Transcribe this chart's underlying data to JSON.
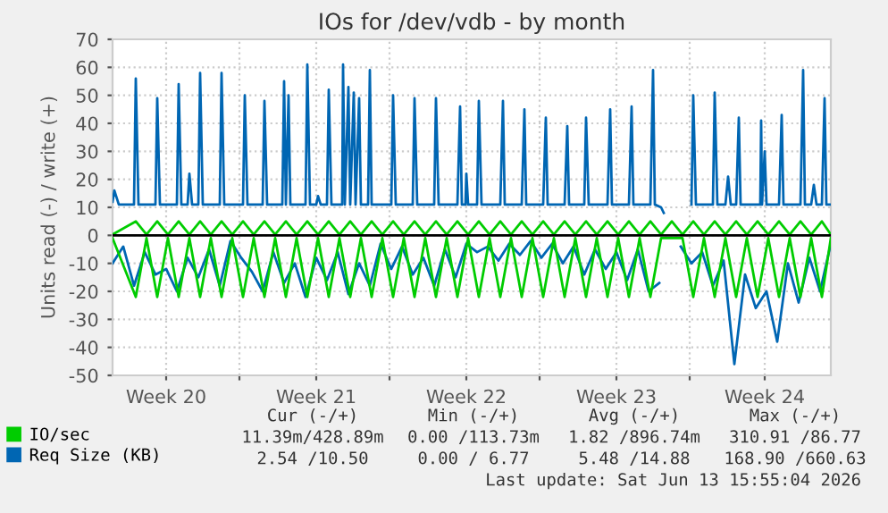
{
  "chart_data": {
    "type": "line",
    "title": "IOs for /dev/vdb - by month",
    "ylabel": "Units read (-) / write (+)",
    "xlim": [
      "2026-05-11T04:00",
      "2026-06-13T16:00"
    ],
    "ylim": [
      -50,
      70
    ],
    "xticks": [
      {
        "value": "2026-05-13T16:00",
        "label": "Week 20"
      },
      {
        "value": "2026-05-17T02:00",
        "label": null
      },
      {
        "value": "2026-05-20T16:00",
        "label": "Week 21"
      },
      {
        "value": "2026-05-24T02:00",
        "label": null
      },
      {
        "value": "2026-05-27T16:00",
        "label": "Week 22"
      },
      {
        "value": "2026-05-31T02:00",
        "label": null
      },
      {
        "value": "2026-06-03T16:00",
        "label": "Week 23"
      },
      {
        "value": "2026-06-07T02:00",
        "label": null
      },
      {
        "value": "2026-06-10T14:00",
        "label": "Week 24"
      }
    ],
    "yticks": [
      -50,
      -40,
      -30,
      -20,
      -10,
      0,
      10,
      20,
      30,
      40,
      50,
      60,
      70
    ],
    "grid": true,
    "legend": "bottom",
    "marker": "none",
    "line_style": "solid",
    "ref_lines": [
      {
        "axis": "y",
        "value": 0,
        "color": "#000000"
      }
    ],
    "series": [
      {
        "name": "Req Size (KB)",
        "color": "#0066b3",
        "x": [
          "2026-05-11T04:00",
          "2026-05-11T06:00",
          "2026-05-11T11:00",
          "2026-05-12T04:00",
          "2026-05-12T06:00",
          "2026-05-12T09:00",
          "2026-05-13T04:00",
          "2026-05-13T06:00",
          "2026-05-13T09:00",
          "2026-05-14T04:00",
          "2026-05-14T06:00",
          "2026-05-14T09:00",
          "2026-05-14T16:00",
          "2026-05-14T18:00",
          "2026-05-14T21:00",
          "2026-05-15T04:00",
          "2026-05-15T06:00",
          "2026-05-15T09:00",
          "2026-05-16T04:00",
          "2026-05-16T06:00",
          "2026-05-16T09:00",
          "2026-05-17T06:00",
          "2026-05-17T08:00",
          "2026-05-17T11:00",
          "2026-05-18T04:00",
          "2026-05-18T06:00",
          "2026-05-18T09:00",
          "2026-05-19T02:00",
          "2026-05-19T04:00",
          "2026-05-19T06:00",
          "2026-05-19T09:00",
          "2026-05-19T11:00",
          "2026-05-20T04:00",
          "2026-05-20T06:00",
          "2026-05-20T09:00",
          "2026-05-20T16:00",
          "2026-05-20T18:00",
          "2026-05-20T21:00",
          "2026-05-21T04:00",
          "2026-05-21T06:00",
          "2026-05-21T09:00",
          "2026-05-21T21:00",
          "2026-05-21T22:00",
          "2026-05-22T00:00",
          "2026-05-22T04:00",
          "2026-05-22T06:00",
          "2026-05-22T10:00",
          "2026-05-22T12:00",
          "2026-05-22T16:00",
          "2026-05-22T18:00",
          "2026-05-23T02:00",
          "2026-05-23T04:00",
          "2026-05-23T06:00",
          "2026-05-24T04:00",
          "2026-05-24T06:00",
          "2026-05-24T09:00",
          "2026-05-25T04:00",
          "2026-05-25T06:00",
          "2026-05-25T09:00",
          "2026-05-26T04:00",
          "2026-05-26T06:00",
          "2026-05-26T09:00",
          "2026-05-27T06:00",
          "2026-05-27T09:00",
          "2026-05-27T11:00",
          "2026-05-27T15:00",
          "2026-05-27T16:00",
          "2026-05-27T18:00",
          "2026-05-28T04:00",
          "2026-05-28T06:00",
          "2026-05-28T09:00",
          "2026-05-29T06:00",
          "2026-05-29T09:00",
          "2026-05-29T11:00",
          "2026-05-30T06:00",
          "2026-05-30T09:00",
          "2026-05-30T11:00",
          "2026-05-31T06:00",
          "2026-05-31T09:00",
          "2026-05-31T11:00",
          "2026-06-01T06:00",
          "2026-06-01T09:00",
          "2026-06-01T11:00",
          "2026-06-02T04:00",
          "2026-06-02T06:00",
          "2026-06-02T09:00",
          "2026-06-03T06:00",
          "2026-06-03T09:00",
          "2026-06-03T11:00",
          "2026-06-04T06:00",
          "2026-06-04T09:00",
          "2026-06-04T11:00",
          "2026-06-05T06:00",
          "2026-06-05T09:00",
          "2026-06-05T11:00",
          "2026-06-05T18:00",
          "2026-06-05T21:00",
          "2026-06-07T02:00",
          "2026-06-07T04:00",
          "2026-06-07T06:00",
          "2026-06-07T09:00",
          "2026-06-08T04:00",
          "2026-06-08T06:00",
          "2026-06-08T09:00",
          "2026-06-08T18:00",
          "2026-06-08T21:00",
          "2026-06-09T00:00",
          "2026-06-09T06:00",
          "2026-06-09T09:00",
          "2026-06-09T11:00",
          "2026-06-10T09:00",
          "2026-06-10T10:00",
          "2026-06-10T11:00",
          "2026-06-10T14:00",
          "2026-06-10T16:00",
          "2026-06-11T06:00",
          "2026-06-11T09:00",
          "2026-06-11T11:00",
          "2026-06-12T06:00",
          "2026-06-12T09:00",
          "2026-06-12T11:00",
          "2026-06-12T18:00",
          "2026-06-12T21:00",
          "2026-06-13T00:00",
          "2026-06-13T06:00",
          "2026-06-13T09:00",
          "2026-06-13T11:00",
          "2026-06-13T16:00"
        ],
        "values": [
          12,
          16,
          11,
          11,
          56,
          11,
          11,
          49,
          11,
          11,
          54,
          11,
          11,
          22,
          11,
          11,
          58,
          11,
          11,
          58,
          11,
          11,
          50,
          11,
          11,
          48,
          11,
          11,
          55,
          11,
          50,
          11,
          11,
          61,
          11,
          11,
          14,
          11,
          11,
          52,
          11,
          11,
          61,
          11,
          53,
          11,
          51,
          11,
          49,
          11,
          11,
          59,
          11,
          11,
          50,
          11,
          11,
          49,
          11,
          11,
          49,
          11,
          11,
          46,
          11,
          11,
          22,
          11,
          11,
          48,
          11,
          11,
          48,
          11,
          11,
          45,
          11,
          11,
          42,
          11,
          11,
          39,
          11,
          11,
          42,
          11,
          11,
          45,
          11,
          11,
          46,
          11,
          11,
          59,
          11,
          10,
          8,
          null,
          11,
          50,
          11,
          11,
          51,
          11,
          11,
          21,
          11,
          11,
          42,
          11,
          11,
          41,
          11,
          30,
          11,
          11,
          43,
          11,
          11,
          59,
          11,
          11,
          18,
          11,
          11,
          49,
          11,
          11
        ]
      },
      {
        "color": "#0066b3",
        "x": [
          "2026-05-11T04:00",
          "2026-05-11T16:00",
          "2026-05-12T04:00",
          "2026-05-12T16:00",
          "2026-05-13T04:00",
          "2026-05-13T16:00",
          "2026-05-14T04:00",
          "2026-05-14T16:00",
          "2026-05-15T04:00",
          "2026-05-15T16:00",
          "2026-05-16T04:00",
          "2026-05-16T16:00",
          "2026-05-17T04:00",
          "2026-05-17T16:00",
          "2026-05-18T04:00",
          "2026-05-18T16:00",
          "2026-05-19T04:00",
          "2026-05-19T16:00",
          "2026-05-20T04:00",
          "2026-05-20T16:00",
          "2026-05-21T04:00",
          "2026-05-21T16:00",
          "2026-05-22T04:00",
          "2026-05-22T16:00",
          "2026-05-23T04:00",
          "2026-05-23T16:00",
          "2026-05-24T04:00",
          "2026-05-24T16:00",
          "2026-05-25T04:00",
          "2026-05-25T16:00",
          "2026-05-26T04:00",
          "2026-05-26T16:00",
          "2026-05-27T04:00",
          "2026-05-27T16:00",
          "2026-05-28T04:00",
          "2026-05-28T16:00",
          "2026-05-29T04:00",
          "2026-05-29T16:00",
          "2026-05-30T04:00",
          "2026-05-30T16:00",
          "2026-05-31T04:00",
          "2026-05-31T16:00",
          "2026-06-01T04:00",
          "2026-06-01T16:00",
          "2026-06-02T04:00",
          "2026-06-02T16:00",
          "2026-06-03T04:00",
          "2026-06-03T16:00",
          "2026-06-04T04:00",
          "2026-06-04T16:00",
          "2026-06-05T04:00",
          "2026-06-05T16:00",
          "2026-06-06T04:00",
          "2026-06-06T16:00",
          "2026-06-07T04:00",
          "2026-06-07T16:00",
          "2026-06-08T04:00",
          "2026-06-08T16:00",
          "2026-06-09T04:00",
          "2026-06-09T16:00",
          "2026-06-10T04:00",
          "2026-06-10T16:00",
          "2026-06-11T04:00",
          "2026-06-11T16:00",
          "2026-06-12T04:00",
          "2026-06-12T16:00",
          "2026-06-13T04:00",
          "2026-06-13T16:00"
        ],
        "values": [
          -10,
          -4,
          -18,
          -6,
          -14,
          -12,
          -20,
          -8,
          -15,
          -5,
          -18,
          -2,
          -8,
          -13,
          -20,
          -6,
          -17,
          -10,
          -22,
          -8,
          -16,
          -6,
          -21,
          -10,
          -18,
          -3,
          -12,
          -4,
          -14,
          -8,
          -18,
          -5,
          -15,
          -3,
          -6,
          -4,
          -9,
          -3,
          -7,
          -2,
          -8,
          -3,
          -10,
          -4,
          -14,
          -5,
          -12,
          -6,
          -16,
          -5,
          -20,
          -17,
          null,
          -4,
          -10,
          -6,
          -18,
          -9,
          -46,
          -14,
          -26,
          -20,
          -38,
          -10,
          -24,
          -8,
          -20,
          -3
        ]
      },
      {
        "name": "IO/sec",
        "color": "#00cc00",
        "x": [
          "2026-05-11T04:00",
          "2026-05-12T06:00",
          "2026-05-12T18:00",
          "2026-05-13T06:00",
          "2026-05-13T18:00",
          "2026-05-14T06:00",
          "2026-05-14T18:00",
          "2026-05-15T06:00",
          "2026-05-15T18:00",
          "2026-05-16T06:00",
          "2026-05-16T18:00",
          "2026-05-17T06:00",
          "2026-05-17T18:00",
          "2026-05-18T06:00",
          "2026-05-18T18:00",
          "2026-05-19T06:00",
          "2026-05-19T18:00",
          "2026-05-20T06:00",
          "2026-05-20T18:00",
          "2026-05-21T06:00",
          "2026-05-21T18:00",
          "2026-05-22T06:00",
          "2026-05-22T18:00",
          "2026-05-23T06:00",
          "2026-05-23T18:00",
          "2026-05-24T06:00",
          "2026-05-24T18:00",
          "2026-05-25T06:00",
          "2026-05-25T18:00",
          "2026-05-26T06:00",
          "2026-05-26T18:00",
          "2026-05-27T06:00",
          "2026-05-27T18:00",
          "2026-05-28T06:00",
          "2026-05-28T18:00",
          "2026-05-29T06:00",
          "2026-05-29T18:00",
          "2026-05-30T06:00",
          "2026-05-30T18:00",
          "2026-05-31T06:00",
          "2026-05-31T18:00",
          "2026-06-01T06:00",
          "2026-06-01T18:00",
          "2026-06-02T06:00",
          "2026-06-02T18:00",
          "2026-06-03T06:00",
          "2026-06-03T18:00",
          "2026-06-04T06:00",
          "2026-06-04T18:00",
          "2026-06-05T06:00",
          "2026-06-05T18:00",
          "2026-06-06T06:00",
          "2026-06-06T18:00",
          "2026-06-07T06:00",
          "2026-06-07T18:00",
          "2026-06-08T06:00",
          "2026-06-08T18:00",
          "2026-06-09T06:00",
          "2026-06-09T18:00",
          "2026-06-10T06:00",
          "2026-06-10T18:00",
          "2026-06-11T06:00",
          "2026-06-11T18:00",
          "2026-06-12T06:00",
          "2026-06-12T18:00",
          "2026-06-13T06:00",
          "2026-06-13T16:00"
        ],
        "values": [
          0.3,
          5,
          0.3,
          5,
          0.3,
          5,
          0.3,
          5,
          0.3,
          5,
          0.3,
          5,
          0.3,
          5,
          0.3,
          5,
          0.3,
          5,
          0.3,
          5,
          0.3,
          5,
          0.3,
          5,
          0.3,
          5,
          0.3,
          5,
          0.3,
          5,
          0.3,
          5,
          0.3,
          5,
          0.3,
          5,
          0.3,
          5,
          0.3,
          5,
          0.3,
          5,
          0.3,
          5,
          0.3,
          5,
          0.3,
          5,
          0.3,
          5,
          0.3,
          5,
          0.3,
          5,
          0.3,
          5,
          0.3,
          5,
          0.3,
          5,
          0.3,
          5,
          0.3,
          5,
          0.3,
          5,
          0.3
        ]
      },
      {
        "color": "#00cc00",
        "x": [
          "2026-05-11T04:00",
          "2026-05-12T06:00",
          "2026-05-12T18:00",
          "2026-05-13T06:00",
          "2026-05-13T18:00",
          "2026-05-14T06:00",
          "2026-05-14T18:00",
          "2026-05-15T06:00",
          "2026-05-15T18:00",
          "2026-05-16T06:00",
          "2026-05-16T18:00",
          "2026-05-17T06:00",
          "2026-05-17T18:00",
          "2026-05-18T06:00",
          "2026-05-18T18:00",
          "2026-05-19T06:00",
          "2026-05-19T18:00",
          "2026-05-20T06:00",
          "2026-05-20T18:00",
          "2026-05-21T06:00",
          "2026-05-21T18:00",
          "2026-05-22T06:00",
          "2026-05-22T18:00",
          "2026-05-23T06:00",
          "2026-05-23T18:00",
          "2026-05-24T06:00",
          "2026-05-24T18:00",
          "2026-05-25T06:00",
          "2026-05-25T18:00",
          "2026-05-26T06:00",
          "2026-05-26T18:00",
          "2026-05-27T06:00",
          "2026-05-27T18:00",
          "2026-05-28T06:00",
          "2026-05-28T18:00",
          "2026-05-29T06:00",
          "2026-05-29T18:00",
          "2026-05-30T06:00",
          "2026-05-30T18:00",
          "2026-05-31T06:00",
          "2026-05-31T18:00",
          "2026-06-01T06:00",
          "2026-06-01T18:00",
          "2026-06-02T06:00",
          "2026-06-02T18:00",
          "2026-06-03T06:00",
          "2026-06-03T18:00",
          "2026-06-04T06:00",
          "2026-06-04T18:00",
          "2026-06-05T06:00",
          "2026-06-05T18:00",
          "2026-06-06T06:00",
          "2026-06-06T18:00",
          "2026-06-07T06:00",
          "2026-06-07T18:00",
          "2026-06-08T06:00",
          "2026-06-08T18:00",
          "2026-06-09T06:00",
          "2026-06-09T18:00",
          "2026-06-10T06:00",
          "2026-06-10T18:00",
          "2026-06-11T06:00",
          "2026-06-11T18:00",
          "2026-06-12T06:00",
          "2026-06-12T18:00",
          "2026-06-13T06:00",
          "2026-06-13T16:00"
        ],
        "values": [
          -1,
          -22,
          -1,
          -22,
          -1,
          -22,
          -1,
          -22,
          -1,
          -22,
          -1,
          -22,
          -1,
          -22,
          -1,
          -22,
          -1,
          -22,
          -1,
          -22,
          -1,
          -22,
          -1,
          -22,
          -1,
          -22,
          -1,
          -22,
          -1,
          -22,
          -1,
          -22,
          -1,
          -22,
          -1,
          -22,
          -1,
          -22,
          -1,
          -22,
          -1,
          -22,
          -1,
          -22,
          -1,
          -22,
          -1,
          -22,
          -1,
          -22,
          -1,
          -1,
          -1,
          -22,
          -1,
          -22,
          -1,
          -22,
          -1,
          -22,
          -1,
          -22,
          -1,
          -22,
          -1,
          -22,
          -1
        ]
      }
    ],
    "annotations": [
      "Cur (-/+)",
      "Min (-/+)",
      "Avg (-/+)",
      "Max (-/+)",
      "11.39m/428.89m",
      "0.00 /113.73m",
      "1.82 /896.74m",
      "310.91 /86.77",
      "2.54 /10.50",
      "0.00 / 6.77",
      "5.48 /14.88",
      "168.90 /660.63",
      "Last update: Sat Jun 13 15:55:04 2026"
    ]
  }
}
